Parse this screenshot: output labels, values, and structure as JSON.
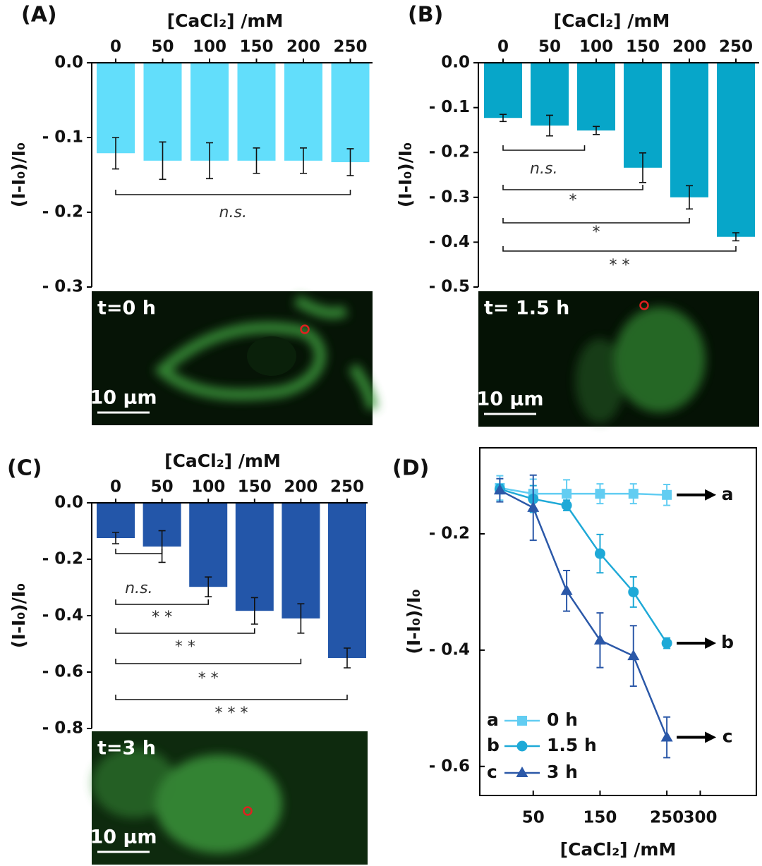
{
  "chart_data": [
    {
      "type": "bar",
      "panel": "(A)",
      "xlabel": "[CaCl₂] /mM",
      "ylabel": "(I-I₀)/I₀",
      "color": "#62defb",
      "categories": [
        "0",
        "50",
        "100",
        "150",
        "200",
        "250"
      ],
      "values": [
        -0.121,
        -0.131,
        -0.131,
        -0.131,
        -0.131,
        -0.133
      ],
      "errors": [
        0.021,
        0.025,
        0.024,
        0.017,
        0.017,
        0.018
      ],
      "ylim": [
        -0.3,
        0
      ],
      "yticks": [
        {
          "value": 0,
          "label": "0.0"
        },
        {
          "value": -0.1,
          "label": "- 0.1"
        },
        {
          "value": -0.2,
          "label": "- 0.2"
        },
        {
          "value": -0.3,
          "label": "- 0.3"
        }
      ],
      "annotations": [
        "n.s."
      ],
      "image_label": "t=0 h",
      "scale_bar": "10 μm"
    },
    {
      "type": "bar",
      "panel": "(B)",
      "xlabel": "[CaCl₂] /mM",
      "ylabel": "(I-I₀)/I₀",
      "color": "#07a6c9",
      "categories": [
        "0",
        "50",
        "100",
        "150",
        "200",
        "250"
      ],
      "values": [
        -0.123,
        -0.14,
        -0.151,
        -0.234,
        -0.3,
        -0.388
      ],
      "errors": [
        0.008,
        0.023,
        0.009,
        0.033,
        0.026,
        0.009
      ],
      "ylim": [
        -0.5,
        0
      ],
      "yticks": [
        {
          "value": 0,
          "label": "0.0"
        },
        {
          "value": -0.1,
          "label": "- 0.1"
        },
        {
          "value": -0.2,
          "label": "- 0.2"
        },
        {
          "value": -0.3,
          "label": "- 0.3"
        },
        {
          "value": -0.4,
          "label": "- 0.4"
        },
        {
          "value": -0.5,
          "label": "- 0.5"
        }
      ],
      "annotations": [
        "n.s.",
        "*",
        "*",
        "* *"
      ],
      "image_label": "t= 1.5 h",
      "scale_bar": "10 μm"
    },
    {
      "type": "bar",
      "panel": "(C)",
      "xlabel": "[CaCl₂] /mM",
      "ylabel": "(I-I₀)/I₀",
      "color": "#2356a9",
      "categories": [
        "0",
        "50",
        "100",
        "150",
        "200",
        "250"
      ],
      "values": [
        -0.125,
        -0.155,
        -0.298,
        -0.383,
        -0.41,
        -0.55
      ],
      "errors": [
        0.02,
        0.056,
        0.035,
        0.047,
        0.052,
        0.035
      ],
      "ylim": [
        -0.8,
        0
      ],
      "yticks": [
        {
          "value": 0,
          "label": "0.0"
        },
        {
          "value": -0.2,
          "label": "- 0.2"
        },
        {
          "value": -0.4,
          "label": "- 0.4"
        },
        {
          "value": -0.6,
          "label": "- 0.6"
        },
        {
          "value": -0.8,
          "label": "- 0.8"
        }
      ],
      "annotations": [
        "n.s.",
        "* *",
        "* *",
        "* *",
        "* * *"
      ],
      "image_label": "t=3 h",
      "scale_bar": "10 μm"
    },
    {
      "type": "line",
      "panel": "(D)",
      "xlabel": "[CaCl₂] /mM",
      "ylabel": "(I-I₀)/I₀",
      "x": [
        0,
        50,
        100,
        150,
        200,
        250
      ],
      "series": [
        {
          "name": "0 h",
          "letter": "a",
          "color": "#62cdf2",
          "marker": "square",
          "values": [
            -0.121,
            -0.131,
            -0.131,
            -0.131,
            -0.131,
            -0.133
          ],
          "errors": [
            0.021,
            0.025,
            0.024,
            0.017,
            0.017,
            0.018
          ]
        },
        {
          "name": "1.5 h",
          "letter": "b",
          "color": "#1ea9d7",
          "marker": "circle",
          "values": [
            -0.123,
            -0.14,
            -0.151,
            -0.234,
            -0.3,
            -0.388
          ],
          "errors": [
            0.008,
            0.023,
            0.009,
            0.033,
            0.026,
            0.009
          ]
        },
        {
          "name": "3 h",
          "letter": "c",
          "color": "#2b58a8",
          "marker": "triangle",
          "values": [
            -0.125,
            -0.155,
            -0.298,
            -0.383,
            -0.41,
            -0.55
          ],
          "errors": [
            0.02,
            0.056,
            0.035,
            0.047,
            0.052,
            0.035
          ]
        }
      ],
      "xlim": [
        -30,
        384
      ],
      "xticks": [
        50,
        150,
        250,
        300
      ],
      "ylim": [
        -0.65,
        -0.052
      ],
      "yticks": [
        {
          "value": -0.2,
          "label": "- 0.2"
        },
        {
          "value": -0.4,
          "label": "- 0.4"
        },
        {
          "value": -0.6,
          "label": "- 0.6"
        }
      ],
      "legend": "lower left"
    }
  ]
}
